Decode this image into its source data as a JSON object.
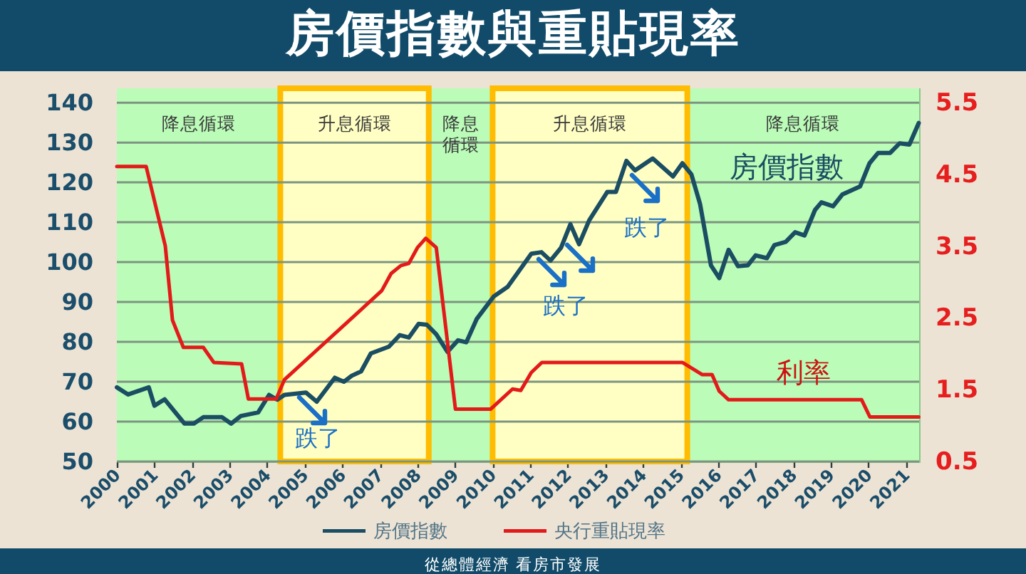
{
  "chart_data": {
    "type": "line",
    "title": "房價指數與重貼現率",
    "xlim": [
      2000,
      2021.35
    ],
    "xticks": [
      2000,
      2001,
      2002,
      2003,
      2004,
      2005,
      2006,
      2007,
      2008,
      2009,
      2010,
      2011,
      2012,
      2013,
      2014,
      2015,
      2016,
      2017,
      2018,
      2019,
      2020,
      2021
    ],
    "ylim": [
      50,
      143.6
    ],
    "yticks": [
      50,
      60,
      70,
      80,
      90,
      100,
      110,
      120,
      130,
      140
    ],
    "y2lim": [
      0.5,
      5.7
    ],
    "y2ticks": [
      0.5,
      1.5,
      2.5,
      3.5,
      4.5,
      5.5
    ],
    "grid": "y",
    "legend": "bottom",
    "series": [
      {
        "name": "房價指數",
        "color": "#1b4d63",
        "x": [
          2000.0,
          2000.3,
          2000.85,
          2001.0,
          2001.27,
          2001.8,
          2002.05,
          2002.3,
          2002.8,
          2003.04,
          2003.3,
          2003.76,
          2004.05,
          2004.27,
          2004.46,
          2005.03,
          2005.32,
          2005.8,
          2006.04,
          2006.25,
          2006.5,
          2006.76,
          2007.24,
          2007.53,
          2007.77,
          2008.03,
          2008.25,
          2008.5,
          2008.8,
          2009.08,
          2009.3,
          2009.58,
          2010.03,
          2010.4,
          2011.03,
          2011.3,
          2011.54,
          2011.82,
          2012.07,
          2012.3,
          2012.57,
          2013.05,
          2013.28,
          2013.56,
          2013.79,
          2014.26,
          2014.8,
          2015.05,
          2015.29,
          2015.52,
          2015.81,
          2016.03,
          2016.28,
          2016.53,
          2016.79,
          2017.0,
          2017.3,
          2017.5,
          2017.8,
          2018.05,
          2018.3,
          2018.58,
          2018.75,
          2019.06,
          2019.31,
          2019.78,
          2020.03,
          2020.26,
          2020.58,
          2020.83,
          2021.09,
          2021.34
        ],
        "values": [
          68.6,
          66.8,
          68.6,
          64.0,
          65.6,
          59.5,
          59.5,
          61.1,
          61.1,
          59.5,
          61.4,
          62.3,
          66.7,
          65.5,
          66.7,
          67.3,
          65.0,
          71.0,
          70.0,
          71.5,
          72.6,
          77.1,
          78.8,
          81.7,
          81.1,
          84.5,
          84.3,
          81.9,
          77.5,
          80.4,
          79.9,
          85.8,
          91.4,
          93.8,
          102.1,
          102.5,
          100.4,
          103.6,
          109.5,
          104.5,
          110.5,
          117.6,
          117.6,
          125.4,
          123.0,
          126.0,
          121.5,
          124.8,
          122.0,
          114.6,
          99.2,
          96.0,
          103.1,
          99.0,
          99.2,
          101.7,
          101.0,
          104.3,
          105.1,
          107.5,
          106.7,
          113.1,
          115.0,
          114.0,
          117.0,
          119.0,
          124.8,
          127.4,
          127.4,
          129.8,
          129.5,
          134.9
        ]
      },
      {
        "name": "央行重貼現率",
        "color": "#e31a1a",
        "axis": "y2",
        "x": [
          2000.0,
          2000.78,
          2001.29,
          2001.48,
          2001.77,
          2002.3,
          2002.58,
          2003.32,
          2003.5,
          2004.24,
          2004.46,
          2007.05,
          2007.3,
          2007.56,
          2007.77,
          2008.0,
          2008.22,
          2008.5,
          2008.82,
          2009.01,
          2009.95,
          2010.53,
          2010.75,
          2011.03,
          2011.31,
          2015.05,
          2015.58,
          2015.84,
          2016.03,
          2016.28,
          2019.82,
          2020.04,
          2021.34
        ],
        "values": [
          4.61,
          4.61,
          3.5,
          2.47,
          2.09,
          2.09,
          1.88,
          1.86,
          1.37,
          1.37,
          1.64,
          2.88,
          3.12,
          3.23,
          3.26,
          3.48,
          3.61,
          3.48,
          2.07,
          1.23,
          1.23,
          1.51,
          1.49,
          1.74,
          1.88,
          1.88,
          1.71,
          1.71,
          1.48,
          1.36,
          1.36,
          1.12,
          1.12
        ]
      }
    ],
    "bands": [
      {
        "axis": "x",
        "from": 2000,
        "to": 2004.35,
        "label": "降息循環",
        "color": "#bafcb8"
      },
      {
        "axis": "x",
        "from": 2004.35,
        "to": 2008.3,
        "label": "升息循環",
        "color": "#ffffc4"
      },
      {
        "axis": "x",
        "from": 2008.3,
        "to": 2010.0,
        "label": "降息循環",
        "color": "#bafcb8"
      },
      {
        "axis": "x",
        "from": 2010.0,
        "to": 2015.18,
        "label": "升息循環",
        "color": "#ffffc4"
      },
      {
        "axis": "x",
        "from": 2015.18,
        "to": 2021.35,
        "label": "降息循環",
        "color": "#bafcb8"
      }
    ],
    "annotations": [
      "跌了",
      "跌了",
      "跌了",
      "房價指數",
      "利率",
      "從總體經濟 看房市發展"
    ]
  }
}
